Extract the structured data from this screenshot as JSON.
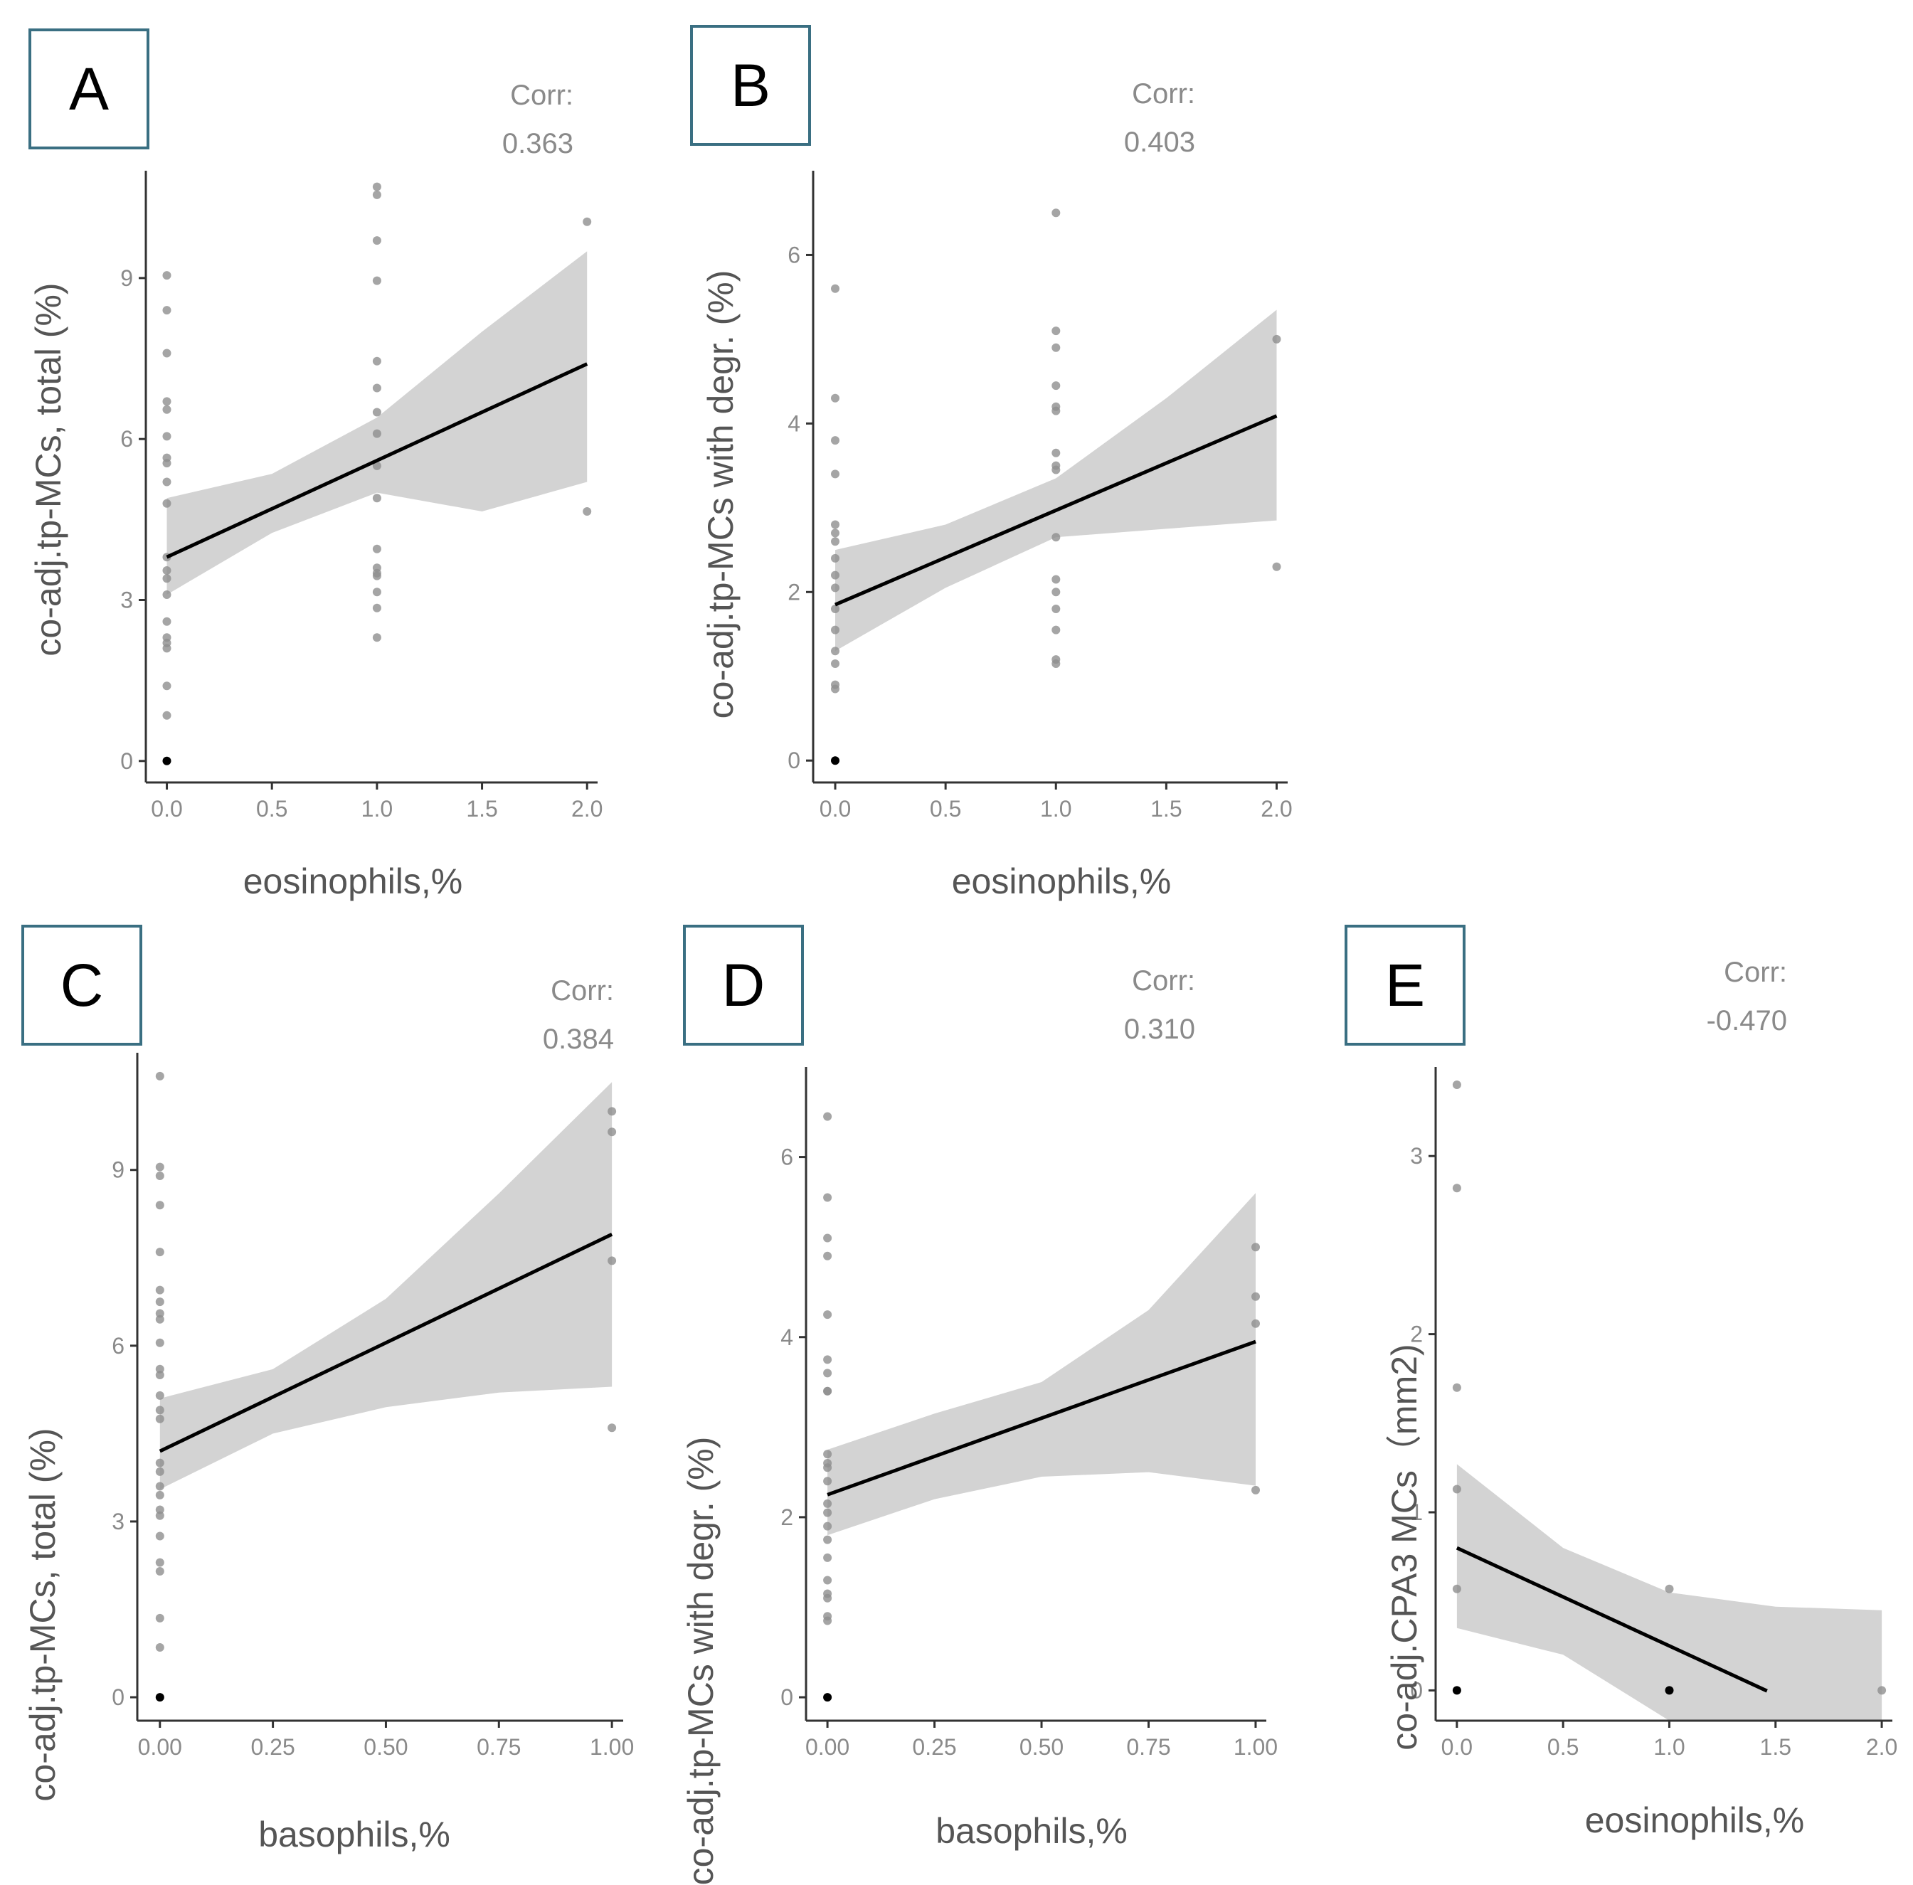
{
  "figure": {
    "chart_data": [
      {
        "type": "scatter",
        "panel": "A",
        "corr_label": "Corr:",
        "corr_value": "0.363",
        "xlabel": "eosinophils,%",
        "ylabel": "co-adj.tp-MCs, total (%)",
        "xlim": [
          -0.1,
          2.05
        ],
        "ylim": [
          -0.4,
          11.0
        ],
        "xticks": [
          0.0,
          0.5,
          1.0,
          1.5,
          2.0
        ],
        "xtick_labels": [
          "0.0",
          "0.5",
          "1.0",
          "1.5",
          "2.0"
        ],
        "yticks": [
          0,
          3,
          6,
          9
        ],
        "ytick_labels": [
          "0",
          "3",
          "6",
          "9"
        ],
        "fit": {
          "intercept": 3.8,
          "slope": 1.8,
          "x_range": [
            0,
            2
          ],
          "ci_x": [
            0,
            0.5,
            1.0,
            1.5,
            2.0
          ],
          "ci_lower": [
            3.1,
            4.25,
            5.0,
            4.65,
            5.2
          ],
          "ci_upper": [
            4.9,
            5.35,
            6.4,
            8.0,
            9.5
          ]
        },
        "points": [
          {
            "x": 0,
            "y": 9.05
          },
          {
            "x": 0,
            "y": 8.4
          },
          {
            "x": 0,
            "y": 7.6
          },
          {
            "x": 0,
            "y": 6.7
          },
          {
            "x": 0,
            "y": 6.55
          },
          {
            "x": 0,
            "y": 6.05
          },
          {
            "x": 0,
            "y": 5.65
          },
          {
            "x": 0,
            "y": 5.55
          },
          {
            "x": 0,
            "y": 5.2
          },
          {
            "x": 0,
            "y": 4.8
          },
          {
            "x": 0,
            "y": 3.8
          },
          {
            "x": 0,
            "y": 3.55
          },
          {
            "x": 0,
            "y": 3.4
          },
          {
            "x": 0,
            "y": 3.1
          },
          {
            "x": 0,
            "y": 2.6
          },
          {
            "x": 0,
            "y": 2.3
          },
          {
            "x": 0,
            "y": 2.2
          },
          {
            "x": 0,
            "y": 2.1
          },
          {
            "x": 0,
            "y": 1.4
          },
          {
            "x": 0,
            "y": 0.85
          },
          {
            "x": 0,
            "y": 0,
            "dark": true
          },
          {
            "x": 1,
            "y": 10.7
          },
          {
            "x": 1,
            "y": 10.55
          },
          {
            "x": 1,
            "y": 9.7
          },
          {
            "x": 1,
            "y": 8.95
          },
          {
            "x": 1,
            "y": 7.45
          },
          {
            "x": 1,
            "y": 6.95
          },
          {
            "x": 1,
            "y": 6.5
          },
          {
            "x": 1,
            "y": 6.1
          },
          {
            "x": 1,
            "y": 5.5
          },
          {
            "x": 1,
            "y": 4.9
          },
          {
            "x": 1,
            "y": 3.95
          },
          {
            "x": 1,
            "y": 3.6
          },
          {
            "x": 1,
            "y": 3.5
          },
          {
            "x": 1,
            "y": 3.45
          },
          {
            "x": 1,
            "y": 3.15
          },
          {
            "x": 1,
            "y": 2.85
          },
          {
            "x": 1,
            "y": 2.3
          },
          {
            "x": 2,
            "y": 10.05
          },
          {
            "x": 2,
            "y": 4.65
          }
        ]
      },
      {
        "type": "scatter",
        "panel": "B",
        "corr_label": "Corr:",
        "corr_value": "0.403",
        "xlabel": "eosinophils,%",
        "ylabel": "co-adj.tp-MCs with degr. (%)",
        "xlim": [
          -0.1,
          2.05
        ],
        "ylim": [
          -0.26,
          7.0
        ],
        "xticks": [
          0.0,
          0.5,
          1.0,
          1.5,
          2.0
        ],
        "xtick_labels": [
          "0.0",
          "0.5",
          "1.0",
          "1.5",
          "2.0"
        ],
        "yticks": [
          0,
          2,
          4,
          6
        ],
        "ytick_labels": [
          "0",
          "2",
          "4",
          "6"
        ],
        "fit": {
          "intercept": 1.85,
          "slope": 1.12,
          "x_range": [
            0,
            2
          ],
          "ci_x": [
            0,
            0.5,
            1.0,
            1.5,
            2.0
          ],
          "ci_lower": [
            1.3,
            2.05,
            2.65,
            2.75,
            2.85
          ],
          "ci_upper": [
            2.5,
            2.8,
            3.35,
            4.3,
            5.35
          ]
        },
        "points": [
          {
            "x": 0,
            "y": 5.6
          },
          {
            "x": 0,
            "y": 4.3
          },
          {
            "x": 0,
            "y": 3.8
          },
          {
            "x": 0,
            "y": 3.4
          },
          {
            "x": 0,
            "y": 2.8
          },
          {
            "x": 0,
            "y": 2.7
          },
          {
            "x": 0,
            "y": 2.6
          },
          {
            "x": 0,
            "y": 2.4
          },
          {
            "x": 0,
            "y": 2.2
          },
          {
            "x": 0,
            "y": 2.05
          },
          {
            "x": 0,
            "y": 1.8
          },
          {
            "x": 0,
            "y": 1.55
          },
          {
            "x": 0,
            "y": 1.3
          },
          {
            "x": 0,
            "y": 1.15
          },
          {
            "x": 0,
            "y": 0.9
          },
          {
            "x": 0,
            "y": 0.85
          },
          {
            "x": 0,
            "y": 0,
            "dark": true
          },
          {
            "x": 1,
            "y": 6.5
          },
          {
            "x": 1,
            "y": 5.1
          },
          {
            "x": 1,
            "y": 4.9
          },
          {
            "x": 1,
            "y": 4.45
          },
          {
            "x": 1,
            "y": 4.2
          },
          {
            "x": 1,
            "y": 4.15
          },
          {
            "x": 1,
            "y": 3.65
          },
          {
            "x": 1,
            "y": 3.5
          },
          {
            "x": 1,
            "y": 3.45
          },
          {
            "x": 1,
            "y": 2.65
          },
          {
            "x": 1,
            "y": 2.15
          },
          {
            "x": 1,
            "y": 2.0
          },
          {
            "x": 1,
            "y": 1.8
          },
          {
            "x": 1,
            "y": 1.55
          },
          {
            "x": 1,
            "y": 1.2
          },
          {
            "x": 1,
            "y": 1.15
          },
          {
            "x": 2,
            "y": 5.0
          },
          {
            "x": 2,
            "y": 2.3
          }
        ]
      },
      {
        "type": "scatter",
        "panel": "C",
        "corr_label": "Corr:",
        "corr_value": "0.384",
        "xlabel": "basophils,%",
        "ylabel": "co-adj.tp-MCs, total (%)",
        "xlim": [
          -0.05,
          1.025
        ],
        "ylim": [
          -0.4,
          11.0
        ],
        "xticks": [
          0.0,
          0.25,
          0.5,
          0.75,
          1.0
        ],
        "xtick_labels": [
          "0.00",
          "0.25",
          "0.50",
          "0.75",
          "1.00"
        ],
        "yticks": [
          0,
          3,
          6,
          9
        ],
        "ytick_labels": [
          "0",
          "3",
          "6",
          "9"
        ],
        "fit": {
          "intercept": 4.2,
          "slope": 3.7,
          "x_range": [
            0,
            1
          ],
          "ci_x": [
            0,
            0.25,
            0.5,
            0.75,
            1.0
          ],
          "ci_lower": [
            3.55,
            4.5,
            4.95,
            5.2,
            5.3
          ],
          "ci_upper": [
            5.1,
            5.6,
            6.8,
            8.6,
            10.5
          ]
        },
        "points": [
          {
            "x": 0,
            "y": 10.6
          },
          {
            "x": 0,
            "y": 9.05
          },
          {
            "x": 0,
            "y": 8.9
          },
          {
            "x": 0,
            "y": 8.4
          },
          {
            "x": 0,
            "y": 7.6
          },
          {
            "x": 0,
            "y": 6.95
          },
          {
            "x": 0,
            "y": 6.75
          },
          {
            "x": 0,
            "y": 6.55
          },
          {
            "x": 0,
            "y": 6.45
          },
          {
            "x": 0,
            "y": 6.05
          },
          {
            "x": 0,
            "y": 5.6
          },
          {
            "x": 0,
            "y": 5.5
          },
          {
            "x": 0,
            "y": 5.15
          },
          {
            "x": 0,
            "y": 4.9
          },
          {
            "x": 0,
            "y": 4.75
          },
          {
            "x": 0,
            "y": 4.0
          },
          {
            "x": 0,
            "y": 3.85
          },
          {
            "x": 0,
            "y": 3.6
          },
          {
            "x": 0,
            "y": 3.45
          },
          {
            "x": 0,
            "y": 3.2
          },
          {
            "x": 0,
            "y": 3.1
          },
          {
            "x": 0,
            "y": 2.75
          },
          {
            "x": 0,
            "y": 2.3
          },
          {
            "x": 0,
            "y": 2.15
          },
          {
            "x": 0,
            "y": 1.35
          },
          {
            "x": 0,
            "y": 0.85
          },
          {
            "x": 0,
            "y": 0,
            "dark": true
          },
          {
            "x": 1,
            "y": 10.0
          },
          {
            "x": 1,
            "y": 9.65
          },
          {
            "x": 1,
            "y": 7.45
          },
          {
            "x": 1,
            "y": 4.6
          }
        ]
      },
      {
        "type": "scatter",
        "panel": "D",
        "corr_label": "Corr:",
        "corr_value": "0.310",
        "xlabel": "basophils,%",
        "ylabel": "co-adj.tp-MCs with degr. (%)",
        "xlim": [
          -0.05,
          1.025
        ],
        "ylim": [
          -0.26,
          7.0
        ],
        "xticks": [
          0.0,
          0.25,
          0.5,
          0.75,
          1.0
        ],
        "xtick_labels": [
          "0.00",
          "0.25",
          "0.50",
          "0.75",
          "1.00"
        ],
        "yticks": [
          0,
          2,
          4,
          6
        ],
        "ytick_labels": [
          "0",
          "2",
          "4",
          "6"
        ],
        "fit": {
          "intercept": 2.25,
          "slope": 1.7,
          "x_range": [
            0,
            1
          ],
          "ci_x": [
            0,
            0.25,
            0.5,
            0.75,
            1.0
          ],
          "ci_lower": [
            1.8,
            2.2,
            2.45,
            2.5,
            2.35
          ],
          "ci_upper": [
            2.75,
            3.15,
            3.5,
            4.3,
            5.6
          ]
        },
        "points": [
          {
            "x": 0,
            "y": 6.45
          },
          {
            "x": 0,
            "y": 5.55
          },
          {
            "x": 0,
            "y": 5.1
          },
          {
            "x": 0,
            "y": 4.9
          },
          {
            "x": 0,
            "y": 4.25
          },
          {
            "x": 0,
            "y": 3.75
          },
          {
            "x": 0,
            "y": 3.6
          },
          {
            "x": 0,
            "y": 3.4
          },
          {
            "x": 0,
            "y": 3.4
          },
          {
            "x": 0,
            "y": 2.7
          },
          {
            "x": 0,
            "y": 2.6
          },
          {
            "x": 0,
            "y": 2.55
          },
          {
            "x": 0,
            "y": 2.4
          },
          {
            "x": 0,
            "y": 2.15
          },
          {
            "x": 0,
            "y": 2.05
          },
          {
            "x": 0,
            "y": 1.9
          },
          {
            "x": 0,
            "y": 1.75
          },
          {
            "x": 0,
            "y": 1.55
          },
          {
            "x": 0,
            "y": 1.3
          },
          {
            "x": 0,
            "y": 1.15
          },
          {
            "x": 0,
            "y": 1.1
          },
          {
            "x": 0,
            "y": 0.9
          },
          {
            "x": 0,
            "y": 0.85
          },
          {
            "x": 0,
            "y": 0,
            "dark": true
          },
          {
            "x": 1,
            "y": 5.0
          },
          {
            "x": 1,
            "y": 4.45
          },
          {
            "x": 1,
            "y": 4.15
          },
          {
            "x": 1,
            "y": 2.3
          }
        ]
      },
      {
        "type": "scatter",
        "panel": "E",
        "corr_label": "Corr:",
        "corr_value": "-0.470",
        "xlabel": "eosinophils,%",
        "ylabel": "co-adj.CPA3 MCs（mm2)",
        "xlim": [
          -0.1,
          2.05
        ],
        "ylim": [
          -0.17,
          3.5
        ],
        "xticks": [
          0.0,
          0.5,
          1.0,
          1.5,
          2.0
        ],
        "xtick_labels": [
          "0.0",
          "0.5",
          "1.0",
          "1.5",
          "2.0"
        ],
        "yticks": [
          0,
          1,
          2,
          3
        ],
        "ytick_labels": [
          "0",
          "1",
          "2",
          "3"
        ],
        "fit": {
          "intercept": 0.8,
          "slope": -0.55,
          "x_range": [
            0,
            1.46
          ],
          "ci_x": [
            0,
            0.5,
            1.0,
            1.5,
            2.0
          ],
          "ci_lower": [
            0.35,
            0.2,
            -0.17,
            -0.17,
            -0.17
          ],
          "ci_upper": [
            1.27,
            0.8,
            0.55,
            0.47,
            0.45
          ]
        },
        "points": [
          {
            "x": 0,
            "y": 3.4
          },
          {
            "x": 0,
            "y": 2.82
          },
          {
            "x": 0,
            "y": 1.7
          },
          {
            "x": 0,
            "y": 1.13
          },
          {
            "x": 0,
            "y": 0.57
          },
          {
            "x": 0,
            "y": 0,
            "dark": true
          },
          {
            "x": 1,
            "y": 0.57
          },
          {
            "x": 1,
            "y": 0,
            "dark": true
          },
          {
            "x": 2,
            "y": 0
          }
        ]
      }
    ]
  }
}
